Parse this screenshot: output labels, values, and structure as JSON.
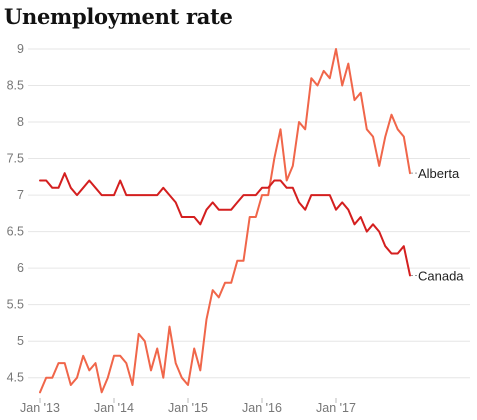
{
  "chart_data": {
    "type": "line",
    "title": "Unemployment rate",
    "xlabel": "",
    "ylabel": "",
    "grid": true,
    "legend": "direct labels at line ends",
    "ylim": [
      4.25,
      9.15
    ],
    "y_ticks": [
      "4.5",
      "5",
      "5.5",
      "6",
      "6.5",
      "7",
      "7.5",
      "8",
      "8.5",
      "9"
    ],
    "x_tick_labels": [
      "Jan '13",
      "Jan '14",
      "Jan '15",
      "Jan '16",
      "Jan '17"
    ],
    "x_tick_months": [
      "2013-01",
      "2014-01",
      "2015-01",
      "2016-01",
      "2017-01"
    ],
    "x_start": "2013-01",
    "series": [
      {
        "name": "Alberta",
        "color": "#f0664a",
        "values": [
          4.3,
          4.5,
          4.5,
          4.7,
          4.7,
          4.4,
          4.5,
          4.8,
          4.6,
          4.7,
          4.3,
          4.5,
          4.8,
          4.8,
          4.7,
          4.4,
          5.1,
          5.0,
          4.6,
          4.9,
          4.5,
          5.2,
          4.7,
          4.5,
          4.4,
          4.9,
          4.6,
          5.3,
          5.7,
          5.6,
          5.8,
          5.8,
          6.1,
          6.1,
          6.7,
          6.7,
          7.0,
          7.0,
          7.5,
          7.9,
          7.2,
          7.4,
          8.0,
          7.9,
          8.6,
          8.5,
          8.7,
          8.6,
          9.0,
          8.5,
          8.8,
          8.3,
          8.4,
          7.9,
          7.8,
          7.4,
          7.8,
          8.1,
          7.9,
          7.8,
          7.3
        ]
      },
      {
        "name": "Canada",
        "color": "#d41f1f",
        "values": [
          7.2,
          7.2,
          7.1,
          7.1,
          7.3,
          7.1,
          7.0,
          7.1,
          7.2,
          7.1,
          7.0,
          7.0,
          7.0,
          7.2,
          7.0,
          7.0,
          7.0,
          7.0,
          7.0,
          7.0,
          7.1,
          7.0,
          6.9,
          6.7,
          6.7,
          6.7,
          6.6,
          6.8,
          6.9,
          6.8,
          6.8,
          6.8,
          6.9,
          7.0,
          7.0,
          7.0,
          7.1,
          7.1,
          7.2,
          7.2,
          7.1,
          7.1,
          6.9,
          6.8,
          7.0,
          7.0,
          7.0,
          7.0,
          6.8,
          6.9,
          6.8,
          6.6,
          6.7,
          6.5,
          6.6,
          6.5,
          6.3,
          6.2,
          6.2,
          6.3,
          5.9
        ]
      }
    ]
  }
}
